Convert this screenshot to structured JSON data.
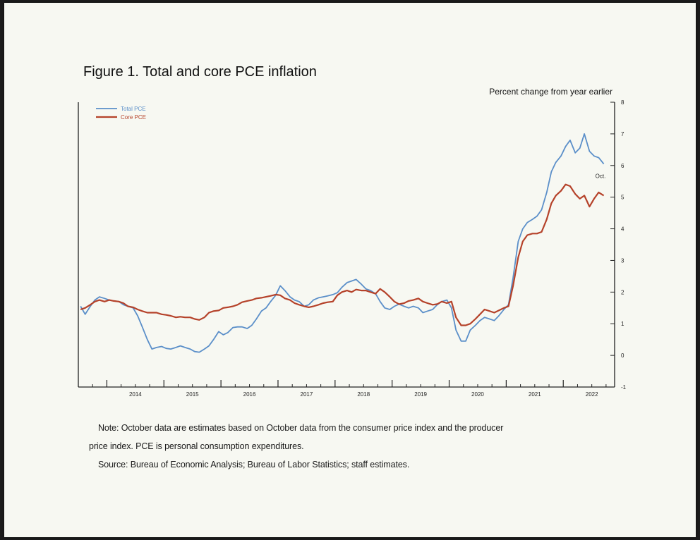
{
  "chart_data": {
    "type": "line",
    "title": "Figure 1. Total and core PCE inflation",
    "ylabel": "Percent change from year earlier",
    "ylim": [
      -1,
      8
    ],
    "yticks": [
      -1,
      0,
      1,
      2,
      3,
      4,
      5,
      6,
      7,
      8
    ],
    "xlim": [
      2013.5,
      2022.9
    ],
    "year_labels": [
      "2014",
      "2015",
      "2016",
      "2017",
      "2018",
      "2019",
      "2020",
      "2021",
      "2022"
    ],
    "legend_position": "top-left",
    "grid": false,
    "annotation": "Oct.",
    "series": [
      {
        "name": "Total PCE",
        "color": "#5b8fc9",
        "points": [
          [
            2013.54,
            1.55
          ],
          [
            2013.62,
            1.3
          ],
          [
            2013.71,
            1.55
          ],
          [
            2013.79,
            1.75
          ],
          [
            2013.87,
            1.85
          ],
          [
            2013.96,
            1.8
          ],
          [
            2014.04,
            1.75
          ],
          [
            2014.12,
            1.72
          ],
          [
            2014.21,
            1.7
          ],
          [
            2014.29,
            1.6
          ],
          [
            2014.37,
            1.55
          ],
          [
            2014.46,
            1.5
          ],
          [
            2014.54,
            1.25
          ],
          [
            2014.62,
            0.9
          ],
          [
            2014.71,
            0.5
          ],
          [
            2014.79,
            0.2
          ],
          [
            2014.87,
            0.25
          ],
          [
            2014.96,
            0.28
          ],
          [
            2015.04,
            0.22
          ],
          [
            2015.12,
            0.2
          ],
          [
            2015.21,
            0.25
          ],
          [
            2015.29,
            0.3
          ],
          [
            2015.37,
            0.25
          ],
          [
            2015.46,
            0.2
          ],
          [
            2015.54,
            0.12
          ],
          [
            2015.62,
            0.1
          ],
          [
            2015.71,
            0.2
          ],
          [
            2015.79,
            0.3
          ],
          [
            2015.87,
            0.5
          ],
          [
            2015.96,
            0.75
          ],
          [
            2016.04,
            0.65
          ],
          [
            2016.12,
            0.72
          ],
          [
            2016.21,
            0.88
          ],
          [
            2016.29,
            0.9
          ],
          [
            2016.37,
            0.9
          ],
          [
            2016.46,
            0.85
          ],
          [
            2016.54,
            0.95
          ],
          [
            2016.62,
            1.15
          ],
          [
            2016.71,
            1.4
          ],
          [
            2016.79,
            1.5
          ],
          [
            2016.87,
            1.7
          ],
          [
            2016.96,
            1.9
          ],
          [
            2017.04,
            2.2
          ],
          [
            2017.12,
            2.05
          ],
          [
            2017.21,
            1.85
          ],
          [
            2017.29,
            1.75
          ],
          [
            2017.37,
            1.7
          ],
          [
            2017.46,
            1.55
          ],
          [
            2017.54,
            1.6
          ],
          [
            2017.62,
            1.75
          ],
          [
            2017.71,
            1.82
          ],
          [
            2017.79,
            1.85
          ],
          [
            2017.87,
            1.88
          ],
          [
            2017.96,
            1.92
          ],
          [
            2018.04,
            1.98
          ],
          [
            2018.12,
            2.15
          ],
          [
            2018.21,
            2.3
          ],
          [
            2018.29,
            2.35
          ],
          [
            2018.37,
            2.4
          ],
          [
            2018.46,
            2.25
          ],
          [
            2018.54,
            2.1
          ],
          [
            2018.62,
            2.05
          ],
          [
            2018.71,
            1.95
          ],
          [
            2018.79,
            1.7
          ],
          [
            2018.87,
            1.5
          ],
          [
            2018.96,
            1.45
          ],
          [
            2019.04,
            1.55
          ],
          [
            2019.12,
            1.62
          ],
          [
            2019.21,
            1.55
          ],
          [
            2019.29,
            1.5
          ],
          [
            2019.37,
            1.55
          ],
          [
            2019.46,
            1.5
          ],
          [
            2019.54,
            1.35
          ],
          [
            2019.62,
            1.4
          ],
          [
            2019.71,
            1.45
          ],
          [
            2019.79,
            1.6
          ],
          [
            2019.87,
            1.7
          ],
          [
            2019.96,
            1.75
          ],
          [
            2020.04,
            1.5
          ],
          [
            2020.12,
            0.8
          ],
          [
            2020.21,
            0.45
          ],
          [
            2020.29,
            0.45
          ],
          [
            2020.37,
            0.8
          ],
          [
            2020.46,
            0.95
          ],
          [
            2020.54,
            1.1
          ],
          [
            2020.62,
            1.2
          ],
          [
            2020.71,
            1.15
          ],
          [
            2020.79,
            1.1
          ],
          [
            2020.87,
            1.25
          ],
          [
            2020.96,
            1.45
          ],
          [
            2021.04,
            1.6
          ],
          [
            2021.12,
            2.45
          ],
          [
            2021.21,
            3.6
          ],
          [
            2021.29,
            4.0
          ],
          [
            2021.37,
            4.2
          ],
          [
            2021.46,
            4.3
          ],
          [
            2021.54,
            4.4
          ],
          [
            2021.62,
            4.6
          ],
          [
            2021.71,
            5.15
          ],
          [
            2021.79,
            5.8
          ],
          [
            2021.87,
            6.1
          ],
          [
            2021.96,
            6.3
          ],
          [
            2022.04,
            6.6
          ],
          [
            2022.12,
            6.8
          ],
          [
            2022.21,
            6.4
          ],
          [
            2022.29,
            6.55
          ],
          [
            2022.37,
            7.0
          ],
          [
            2022.46,
            6.45
          ],
          [
            2022.54,
            6.3
          ],
          [
            2022.62,
            6.25
          ],
          [
            2022.71,
            6.05
          ]
        ]
      },
      {
        "name": "Core PCE",
        "color": "#b5422a",
        "points": [
          [
            2013.54,
            1.45
          ],
          [
            2013.62,
            1.5
          ],
          [
            2013.71,
            1.6
          ],
          [
            2013.79,
            1.7
          ],
          [
            2013.87,
            1.75
          ],
          [
            2013.96,
            1.7
          ],
          [
            2014.04,
            1.75
          ],
          [
            2014.12,
            1.72
          ],
          [
            2014.21,
            1.7
          ],
          [
            2014.29,
            1.65
          ],
          [
            2014.37,
            1.55
          ],
          [
            2014.46,
            1.52
          ],
          [
            2014.54,
            1.45
          ],
          [
            2014.62,
            1.4
          ],
          [
            2014.71,
            1.35
          ],
          [
            2014.79,
            1.35
          ],
          [
            2014.87,
            1.35
          ],
          [
            2014.96,
            1.3
          ],
          [
            2015.04,
            1.28
          ],
          [
            2015.12,
            1.25
          ],
          [
            2015.21,
            1.2
          ],
          [
            2015.29,
            1.22
          ],
          [
            2015.37,
            1.2
          ],
          [
            2015.46,
            1.2
          ],
          [
            2015.54,
            1.15
          ],
          [
            2015.62,
            1.12
          ],
          [
            2015.71,
            1.2
          ],
          [
            2015.79,
            1.35
          ],
          [
            2015.87,
            1.4
          ],
          [
            2015.96,
            1.42
          ],
          [
            2016.04,
            1.5
          ],
          [
            2016.12,
            1.52
          ],
          [
            2016.21,
            1.55
          ],
          [
            2016.29,
            1.6
          ],
          [
            2016.37,
            1.68
          ],
          [
            2016.46,
            1.72
          ],
          [
            2016.54,
            1.75
          ],
          [
            2016.62,
            1.8
          ],
          [
            2016.71,
            1.82
          ],
          [
            2016.79,
            1.85
          ],
          [
            2016.87,
            1.88
          ],
          [
            2016.96,
            1.92
          ],
          [
            2017.04,
            1.9
          ],
          [
            2017.12,
            1.8
          ],
          [
            2017.21,
            1.75
          ],
          [
            2017.29,
            1.65
          ],
          [
            2017.37,
            1.6
          ],
          [
            2017.46,
            1.55
          ],
          [
            2017.54,
            1.52
          ],
          [
            2017.62,
            1.55
          ],
          [
            2017.71,
            1.6
          ],
          [
            2017.79,
            1.65
          ],
          [
            2017.87,
            1.68
          ],
          [
            2017.96,
            1.7
          ],
          [
            2018.04,
            1.9
          ],
          [
            2018.12,
            2.0
          ],
          [
            2018.21,
            2.05
          ],
          [
            2018.29,
            2.0
          ],
          [
            2018.37,
            2.08
          ],
          [
            2018.46,
            2.05
          ],
          [
            2018.54,
            2.05
          ],
          [
            2018.62,
            2.0
          ],
          [
            2018.71,
            1.95
          ],
          [
            2018.79,
            2.1
          ],
          [
            2018.87,
            2.0
          ],
          [
            2018.96,
            1.85
          ],
          [
            2019.04,
            1.7
          ],
          [
            2019.12,
            1.62
          ],
          [
            2019.21,
            1.65
          ],
          [
            2019.29,
            1.72
          ],
          [
            2019.37,
            1.75
          ],
          [
            2019.46,
            1.8
          ],
          [
            2019.54,
            1.7
          ],
          [
            2019.62,
            1.65
          ],
          [
            2019.71,
            1.6
          ],
          [
            2019.79,
            1.62
          ],
          [
            2019.87,
            1.7
          ],
          [
            2019.96,
            1.65
          ],
          [
            2020.04,
            1.7
          ],
          [
            2020.12,
            1.2
          ],
          [
            2020.21,
            0.95
          ],
          [
            2020.29,
            0.95
          ],
          [
            2020.37,
            1.0
          ],
          [
            2020.46,
            1.15
          ],
          [
            2020.54,
            1.3
          ],
          [
            2020.62,
            1.45
          ],
          [
            2020.71,
            1.4
          ],
          [
            2020.79,
            1.35
          ],
          [
            2020.87,
            1.42
          ],
          [
            2020.96,
            1.5
          ],
          [
            2021.04,
            1.55
          ],
          [
            2021.12,
            2.2
          ],
          [
            2021.21,
            3.1
          ],
          [
            2021.29,
            3.6
          ],
          [
            2021.37,
            3.8
          ],
          [
            2021.46,
            3.85
          ],
          [
            2021.54,
            3.85
          ],
          [
            2021.62,
            3.9
          ],
          [
            2021.71,
            4.3
          ],
          [
            2021.79,
            4.8
          ],
          [
            2021.87,
            5.05
          ],
          [
            2021.96,
            5.2
          ],
          [
            2022.04,
            5.4
          ],
          [
            2022.12,
            5.35
          ],
          [
            2022.21,
            5.1
          ],
          [
            2022.29,
            4.95
          ],
          [
            2022.37,
            5.05
          ],
          [
            2022.46,
            4.7
          ],
          [
            2022.54,
            4.95
          ],
          [
            2022.62,
            5.15
          ],
          [
            2022.71,
            5.05
          ]
        ]
      }
    ]
  },
  "notes": {
    "note_line1": "Note: October data are estimates based on October data from the consumer price index and the producer",
    "note_line2": "price index. PCE is personal consumption expenditures.",
    "source": "Source: Bureau of Economic Analysis; Bureau of Labor Statistics; staff estimates."
  }
}
